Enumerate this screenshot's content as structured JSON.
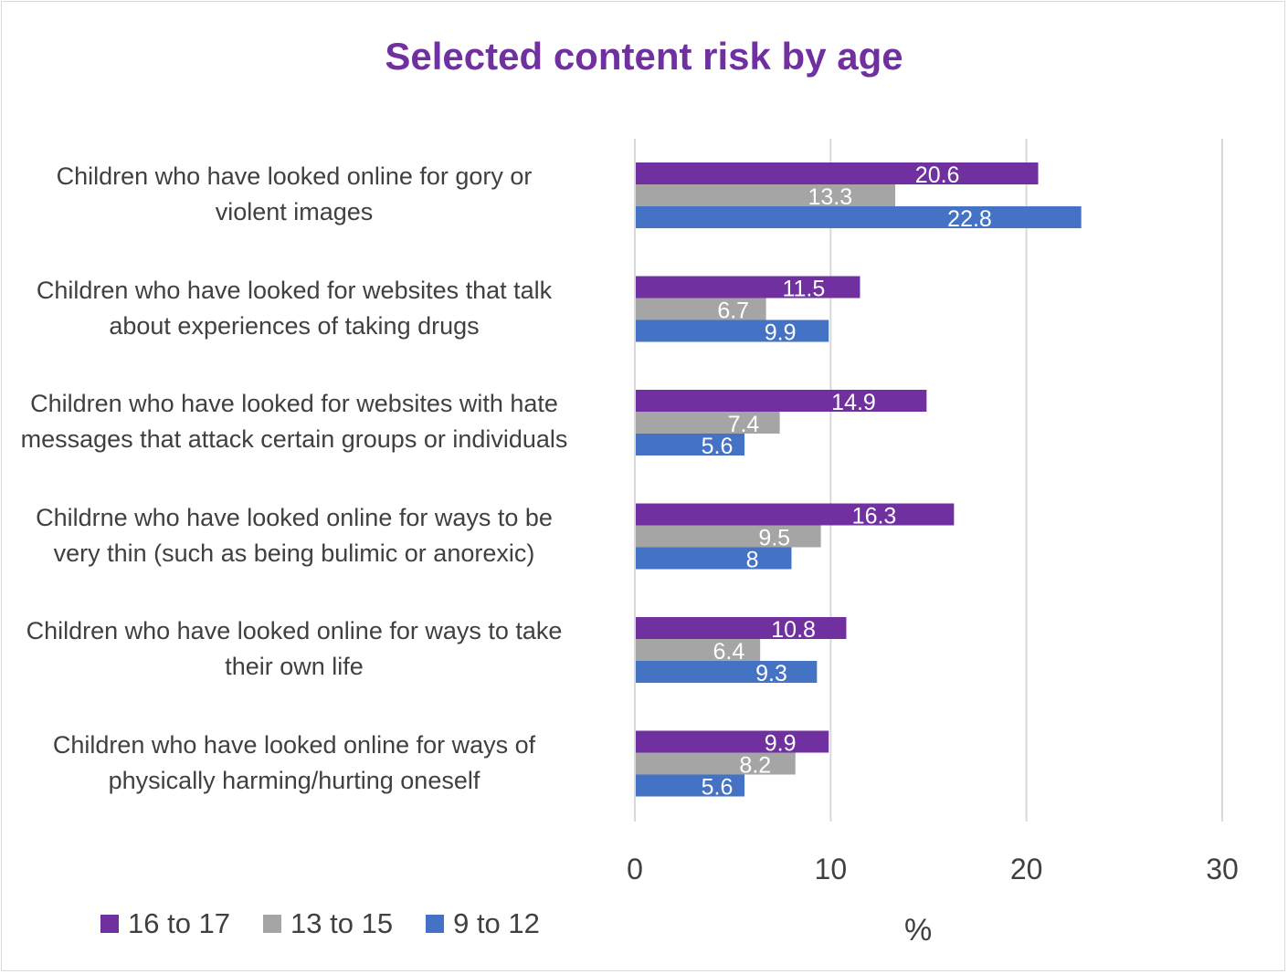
{
  "chart_data": {
    "type": "bar",
    "orientation": "horizontal",
    "title": "Selected content risk by age",
    "xlabel": "%",
    "ylabel": "",
    "xlim": [
      0,
      30
    ],
    "x_ticks": [
      "0",
      "10",
      "20",
      "30"
    ],
    "grid": true,
    "legend_position": "bottom-left",
    "categories": [
      [
        "Children who have looked online for gory or",
        "violent images"
      ],
      [
        "Children who have looked for websites that talk",
        "about experiences of taking drugs"
      ],
      [
        "Children who have looked for websites with hate",
        "messages that attack certain groups or individuals"
      ],
      [
        "Childrne who have looked online for ways to be",
        "very thin (such as being bulimic or anorexic)"
      ],
      [
        "Children who have looked online for ways to take",
        "their own life"
      ],
      [
        "Children who have looked online for ways of",
        "physically harming/hurting oneself"
      ]
    ],
    "series": [
      {
        "name": "16 to 17",
        "color": "#7030a0",
        "values": [
          20.6,
          11.5,
          14.9,
          16.3,
          10.8,
          9.9
        ]
      },
      {
        "name": "13 to 15",
        "color": "#a5a5a5",
        "values": [
          13.3,
          6.7,
          7.4,
          9.5,
          6.4,
          8.2
        ]
      },
      {
        "name": "9 to 12",
        "color": "#4472c4",
        "values": [
          22.8,
          9.9,
          5.6,
          8,
          9.3,
          5.6
        ]
      }
    ]
  }
}
